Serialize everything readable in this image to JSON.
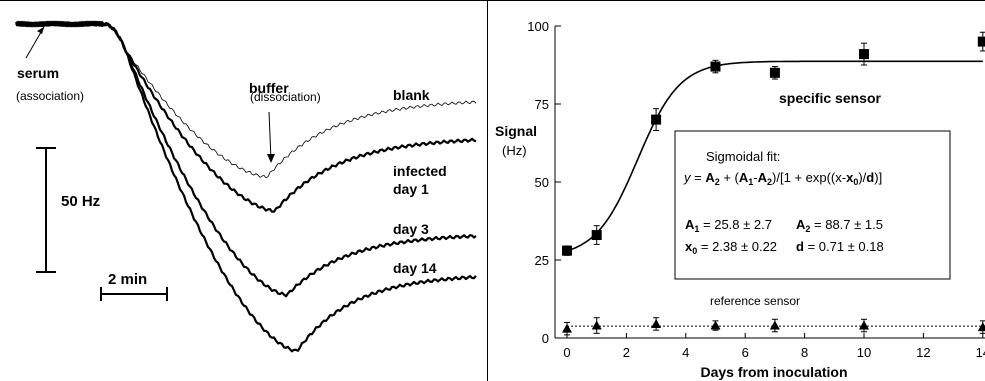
{
  "chart_data": [
    {
      "type": "line",
      "panel": "left",
      "traces": [
        {
          "name": "blank",
          "weight": "thin"
        },
        {
          "name": "infected day 1",
          "weight": "bold"
        },
        {
          "name": "day 3",
          "weight": "bold"
        },
        {
          "name": "day 14",
          "weight": "bold"
        }
      ],
      "annotations": {
        "serum": "serum",
        "association": "(association)",
        "buffer": "buffer",
        "dissociation": "(dissociation)",
        "blank": "blank",
        "infected": "infected",
        "day1": "day 1",
        "day3": "day 3",
        "day14": "day 14",
        "scale_y": "50 Hz",
        "scale_x": "2 min"
      }
    },
    {
      "type": "scatter",
      "panel": "right",
      "xlabel": "Days from inoculation",
      "ylabel": "Signal",
      "ylabel_unit": "(Hz)",
      "xlim": [
        -0.4,
        14
      ],
      "ylim": [
        0,
        100
      ],
      "xticks": [
        0,
        2,
        4,
        6,
        8,
        10,
        12,
        14
      ],
      "yticks": [
        0,
        25,
        50,
        75,
        100
      ],
      "grid": false,
      "series": [
        {
          "name": "specific sensor",
          "marker": "square",
          "points": [
            {
              "x": 0,
              "y": 28,
              "err": 1.5
            },
            {
              "x": 1,
              "y": 33,
              "err": 3
            },
            {
              "x": 3,
              "y": 70,
              "err": 3.5
            },
            {
              "x": 5,
              "y": 87,
              "err": 2
            },
            {
              "x": 7,
              "y": 85,
              "err": 2
            },
            {
              "x": 10,
              "y": 91,
              "err": 3.5
            },
            {
              "x": 14,
              "y": 95,
              "err": 3
            }
          ],
          "fit": {
            "A1": 25.8,
            "A2": 88.7,
            "x0": 2.38,
            "d": 0.71
          }
        },
        {
          "name": "reference sensor",
          "marker": "triangle",
          "points": [
            {
              "x": 0,
              "y": 3,
              "err": 2
            },
            {
              "x": 1,
              "y": 4,
              "err": 2.5
            },
            {
              "x": 3,
              "y": 4.5,
              "err": 2
            },
            {
              "x": 5,
              "y": 4,
              "err": 1.5
            },
            {
              "x": 7,
              "y": 4,
              "err": 2
            },
            {
              "x": 10,
              "y": 4,
              "err": 2
            },
            {
              "x": 14,
              "y": 3.5,
              "err": 2
            }
          ],
          "fit": {
            "y": 3.8
          }
        }
      ],
      "fit_box": {
        "title": "Sigmoidal fit:",
        "eq_y": "y",
        "eq_eq": " = ",
        "eq_A2": "A",
        "eq_sub2": "2",
        "eq_plus": " + (",
        "eq_A1": "A",
        "eq_sub1": "1",
        "eq_minus": "-",
        "eq_A2b": "A",
        "eq_sub2b": "2",
        "eq_mid": ")/[1 + exp((x-",
        "eq_x": "x",
        "eq_sub0": "0",
        "eq_div": ")/",
        "eq_d": "d",
        "eq_end": ")]",
        "p_A1": "A",
        "p_A1_sub": "1",
        "p_A1_val": " = 25.8 ± 2.7",
        "p_A2": "A",
        "p_A2_sub": "2",
        "p_A2_val": " = 88.7 ± 1.5",
        "p_x0": "x",
        "p_x0_sub": "0",
        "p_x0_val": " = 2.38 ± 0.22",
        "p_d": "d",
        "p_d_val": " = 0.71 ± 0.18"
      }
    }
  ]
}
